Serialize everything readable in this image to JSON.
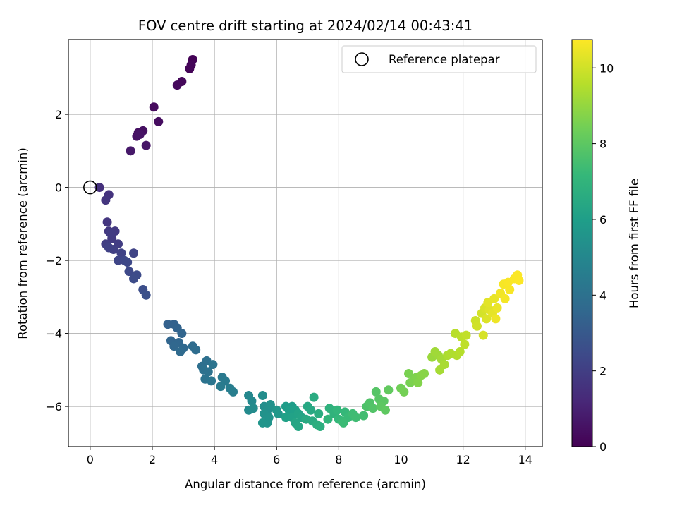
{
  "chart_data": {
    "type": "scatter",
    "title": "FOV centre drift starting at 2024/02/14 00:43:41",
    "xlabel": "Angular distance from reference (arcmin)",
    "ylabel": "Rotation from reference (arcmin)",
    "xlim": [
      -0.7,
      14.55
    ],
    "ylim": [
      -7.1,
      4.05
    ],
    "xticks": [
      0,
      2,
      4,
      6,
      8,
      10,
      12,
      14
    ],
    "yticks": [
      -6,
      -4,
      -2,
      0,
      2
    ],
    "grid": true,
    "legend": {
      "placement": "upper-right",
      "entries": [
        "Reference platepar"
      ]
    },
    "reference_point": {
      "x": 0,
      "y": 0
    },
    "colorbar": {
      "label": "Hours from first FF file",
      "range": [
        0,
        10.75
      ],
      "ticks": [
        0,
        2,
        4,
        6,
        8,
        10
      ],
      "colormap": "viridis"
    },
    "colors": {
      "viridis": [
        "#440154",
        "#482878",
        "#3e4989",
        "#31688e",
        "#26828e",
        "#1f9e89",
        "#35b779",
        "#6ece58",
        "#b5de2b",
        "#fde725"
      ]
    },
    "series": [
      {
        "columns": [
          "x",
          "y",
          "hours"
        ],
        "points": [
          [
            3.3,
            3.5,
            0.05
          ],
          [
            3.2,
            3.25,
            0.1
          ],
          [
            3.25,
            3.35,
            0.12
          ],
          [
            2.95,
            2.9,
            0.2
          ],
          [
            2.8,
            2.8,
            0.25
          ],
          [
            2.05,
            2.2,
            0.3
          ],
          [
            2.2,
            1.8,
            0.35
          ],
          [
            1.7,
            1.55,
            0.42
          ],
          [
            1.55,
            1.5,
            0.45
          ],
          [
            1.5,
            1.4,
            0.5
          ],
          [
            1.6,
            1.45,
            0.55
          ],
          [
            1.8,
            1.15,
            0.62
          ],
          [
            1.3,
            1.0,
            0.7
          ],
          [
            0.3,
            0.0,
            1.5
          ],
          [
            0.6,
            -0.2,
            1.6
          ],
          [
            0.5,
            -0.35,
            1.65
          ],
          [
            0.55,
            -0.95,
            1.7
          ],
          [
            0.6,
            -1.2,
            1.75
          ],
          [
            0.8,
            -1.2,
            1.8
          ],
          [
            0.7,
            -1.4,
            1.85
          ],
          [
            0.65,
            -1.25,
            1.9
          ],
          [
            0.9,
            -1.55,
            1.95
          ],
          [
            0.5,
            -1.55,
            2.0
          ],
          [
            0.75,
            -1.7,
            2.05
          ],
          [
            0.6,
            -1.65,
            2.1
          ],
          [
            1.0,
            -1.8,
            2.15
          ],
          [
            1.4,
            -1.8,
            2.2
          ],
          [
            0.9,
            -2.0,
            2.25
          ],
          [
            1.1,
            -2.0,
            2.3
          ],
          [
            1.2,
            -2.05,
            2.35
          ],
          [
            1.25,
            -2.3,
            2.4
          ],
          [
            1.5,
            -2.4,
            2.45
          ],
          [
            1.4,
            -2.5,
            2.5
          ],
          [
            1.7,
            -2.8,
            2.6
          ],
          [
            1.8,
            -2.95,
            2.65
          ],
          [
            2.5,
            -3.75,
            3.3
          ],
          [
            2.7,
            -3.75,
            3.35
          ],
          [
            2.8,
            -3.85,
            3.4
          ],
          [
            2.95,
            -4.0,
            3.45
          ],
          [
            2.6,
            -4.2,
            3.5
          ],
          [
            2.85,
            -4.25,
            3.55
          ],
          [
            2.7,
            -4.35,
            3.6
          ],
          [
            3.0,
            -4.4,
            3.65
          ],
          [
            2.9,
            -4.5,
            3.7
          ],
          [
            3.3,
            -4.35,
            3.75
          ],
          [
            3.4,
            -4.45,
            3.8
          ],
          [
            3.6,
            -4.9,
            3.9
          ],
          [
            3.75,
            -4.75,
            3.95
          ],
          [
            3.65,
            -5.0,
            4.0
          ],
          [
            3.8,
            -5.05,
            4.05
          ],
          [
            3.7,
            -5.25,
            4.1
          ],
          [
            3.95,
            -4.85,
            4.15
          ],
          [
            3.9,
            -5.3,
            4.2
          ],
          [
            4.25,
            -5.2,
            4.35
          ],
          [
            4.35,
            -5.3,
            4.4
          ],
          [
            4.2,
            -5.45,
            4.45
          ],
          [
            4.5,
            -5.5,
            4.55
          ],
          [
            4.6,
            -5.6,
            4.6
          ],
          [
            5.1,
            -5.7,
            5.0
          ],
          [
            5.2,
            -5.85,
            5.05
          ],
          [
            5.1,
            -6.1,
            5.1
          ],
          [
            5.25,
            -6.05,
            5.15
          ],
          [
            5.55,
            -5.7,
            5.25
          ],
          [
            5.6,
            -6.0,
            5.3
          ],
          [
            5.7,
            -6.1,
            5.35
          ],
          [
            5.8,
            -5.95,
            5.4
          ],
          [
            5.6,
            -6.2,
            5.45
          ],
          [
            5.75,
            -6.3,
            5.5
          ],
          [
            5.7,
            -6.45,
            5.55
          ],
          [
            5.55,
            -6.45,
            5.6
          ],
          [
            6.0,
            -6.1,
            5.65
          ],
          [
            6.05,
            -6.2,
            5.7
          ],
          [
            6.3,
            -6.0,
            5.9
          ],
          [
            6.5,
            -6.0,
            5.95
          ],
          [
            6.4,
            -6.1,
            6.0
          ],
          [
            6.6,
            -6.1,
            6.05
          ],
          [
            6.3,
            -6.3,
            6.1
          ],
          [
            6.5,
            -6.3,
            6.15
          ],
          [
            6.7,
            -6.2,
            6.2
          ],
          [
            6.8,
            -6.3,
            6.25
          ],
          [
            6.6,
            -6.45,
            6.3
          ],
          [
            6.7,
            -6.55,
            6.35
          ],
          [
            7.0,
            -6.0,
            6.4
          ],
          [
            7.1,
            -6.1,
            6.45
          ],
          [
            6.95,
            -6.35,
            6.5
          ],
          [
            7.15,
            -6.4,
            6.55
          ],
          [
            7.2,
            -5.75,
            6.6
          ],
          [
            7.35,
            -6.2,
            6.65
          ],
          [
            7.3,
            -6.5,
            6.7
          ],
          [
            7.4,
            -6.55,
            6.75
          ],
          [
            7.7,
            -6.05,
            6.9
          ],
          [
            7.85,
            -6.2,
            6.95
          ],
          [
            7.65,
            -6.35,
            7.0
          ],
          [
            7.95,
            -6.1,
            7.05
          ],
          [
            8.0,
            -6.35,
            7.1
          ],
          [
            8.2,
            -6.15,
            7.15
          ],
          [
            8.1,
            -6.4,
            7.2
          ],
          [
            8.3,
            -6.3,
            7.25
          ],
          [
            8.15,
            -6.45,
            7.3
          ],
          [
            8.45,
            -6.2,
            7.35
          ],
          [
            8.55,
            -6.3,
            7.4
          ],
          [
            8.8,
            -6.25,
            7.45
          ],
          [
            8.9,
            -6.0,
            7.7
          ],
          [
            9.0,
            -5.9,
            7.75
          ],
          [
            9.1,
            -6.05,
            7.8
          ],
          [
            9.2,
            -5.6,
            7.85
          ],
          [
            9.3,
            -5.8,
            7.9
          ],
          [
            9.45,
            -5.85,
            7.95
          ],
          [
            9.35,
            -6.0,
            8.0
          ],
          [
            9.5,
            -6.1,
            8.05
          ],
          [
            9.6,
            -5.55,
            8.1
          ],
          [
            10.0,
            -5.5,
            8.4
          ],
          [
            10.1,
            -5.6,
            8.45
          ],
          [
            10.3,
            -5.35,
            8.5
          ],
          [
            10.25,
            -5.1,
            8.55
          ],
          [
            10.4,
            -5.3,
            8.6
          ],
          [
            10.5,
            -5.2,
            8.65
          ],
          [
            10.55,
            -5.35,
            8.7
          ],
          [
            10.65,
            -5.15,
            8.75
          ],
          [
            10.75,
            -5.1,
            8.8
          ],
          [
            11.0,
            -4.65,
            9.1
          ],
          [
            11.2,
            -4.6,
            9.15
          ],
          [
            11.1,
            -4.5,
            9.2
          ],
          [
            11.3,
            -4.7,
            9.25
          ],
          [
            11.25,
            -5.0,
            9.3
          ],
          [
            11.4,
            -4.85,
            9.35
          ],
          [
            11.5,
            -4.6,
            9.4
          ],
          [
            11.6,
            -4.55,
            9.45
          ],
          [
            11.8,
            -4.6,
            9.5
          ],
          [
            11.9,
            -4.5,
            9.55
          ],
          [
            11.75,
            -4.0,
            9.6
          ],
          [
            11.95,
            -4.1,
            9.65
          ],
          [
            12.05,
            -4.3,
            9.7
          ],
          [
            12.1,
            -4.05,
            9.75
          ],
          [
            12.4,
            -3.65,
            9.95
          ],
          [
            12.45,
            -3.8,
            10.0
          ],
          [
            12.6,
            -3.45,
            10.05
          ],
          [
            12.65,
            -4.05,
            10.1
          ],
          [
            12.7,
            -3.3,
            10.15
          ],
          [
            12.75,
            -3.6,
            10.2
          ],
          [
            12.85,
            -3.35,
            10.25
          ],
          [
            12.8,
            -3.15,
            10.3
          ],
          [
            12.95,
            -3.45,
            10.35
          ],
          [
            13.0,
            -3.05,
            10.4
          ],
          [
            13.1,
            -3.3,
            10.45
          ],
          [
            13.05,
            -3.6,
            10.5
          ],
          [
            13.2,
            -2.9,
            10.55
          ],
          [
            13.35,
            -3.05,
            10.6
          ],
          [
            13.3,
            -2.65,
            10.63
          ],
          [
            13.5,
            -2.8,
            10.66
          ],
          [
            13.45,
            -2.6,
            10.68
          ],
          [
            13.65,
            -2.5,
            10.7
          ],
          [
            13.75,
            -2.4,
            10.72
          ],
          [
            13.8,
            -2.55,
            10.74
          ]
        ]
      }
    ]
  }
}
